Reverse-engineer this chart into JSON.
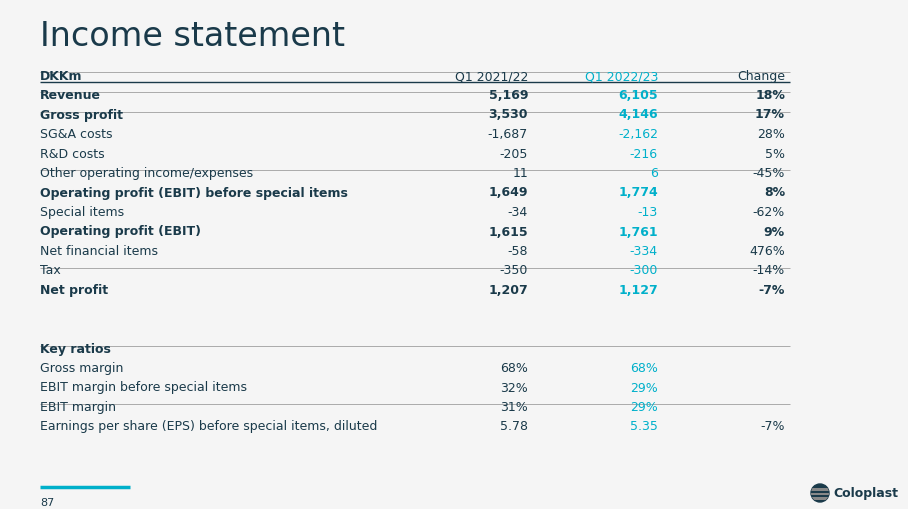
{
  "title": "Income statement",
  "background_color": "#f5f5f5",
  "title_color": "#1a3a4a",
  "cyan_color": "#00b0ca",
  "dark_color": "#1a3a4a",
  "header": [
    "DKKm",
    "Q1 2021/22",
    "Q1 2022/23",
    "Change"
  ],
  "rows": [
    {
      "label": "Revenue",
      "v1": "5,169",
      "v2": "6,105",
      "chg": "18%",
      "bold": true,
      "sep_above": true,
      "sep_below": true
    },
    {
      "label": "Gross profit",
      "v1": "3,530",
      "v2": "4,146",
      "chg": "17%",
      "bold": true,
      "sep_above": false,
      "sep_below": true
    },
    {
      "label": "SG&A costs",
      "v1": "-1,687",
      "v2": "-2,162",
      "chg": "28%",
      "bold": false,
      "sep_above": false,
      "sep_below": false
    },
    {
      "label": "R&D costs",
      "v1": "-205",
      "v2": "-216",
      "chg": "5%",
      "bold": false,
      "sep_above": false,
      "sep_below": false
    },
    {
      "label": "Other operating income/expenses",
      "v1": "11",
      "v2": "6",
      "chg": "-45%",
      "bold": false,
      "sep_above": false,
      "sep_below": true
    },
    {
      "label": "Operating profit (EBIT) before special items",
      "v1": "1,649",
      "v2": "1,774",
      "chg": "8%",
      "bold": true,
      "sep_above": false,
      "sep_below": false
    },
    {
      "label": "Special items",
      "v1": "-34",
      "v2": "-13",
      "chg": "-62%",
      "bold": false,
      "sep_above": false,
      "sep_below": false
    },
    {
      "label": "Operating profit (EBIT)",
      "v1": "1,615",
      "v2": "1,761",
      "chg": "9%",
      "bold": true,
      "sep_above": false,
      "sep_below": false
    },
    {
      "label": "Net financial items",
      "v1": "-58",
      "v2": "-334",
      "chg": "476%",
      "bold": false,
      "sep_above": false,
      "sep_below": false
    },
    {
      "label": "Tax",
      "v1": "-350",
      "v2": "-300",
      "chg": "-14%",
      "bold": false,
      "sep_above": false,
      "sep_below": true
    },
    {
      "label": "Net profit",
      "v1": "1,207",
      "v2": "1,127",
      "chg": "-7%",
      "bold": true,
      "sep_above": false,
      "sep_below": false
    },
    {
      "label": "",
      "v1": "",
      "v2": "",
      "chg": "",
      "bold": false,
      "sep_above": false,
      "sep_below": false
    },
    {
      "label": "",
      "v1": "",
      "v2": "",
      "chg": "",
      "bold": false,
      "sep_above": false,
      "sep_below": false
    },
    {
      "label": "Key ratios",
      "v1": "",
      "v2": "",
      "chg": "",
      "bold": true,
      "sep_above": false,
      "sep_below": true
    },
    {
      "label": "Gross margin",
      "v1": "68%",
      "v2": "68%",
      "chg": "",
      "bold": false,
      "sep_above": false,
      "sep_below": false
    },
    {
      "label": "EBIT margin before special items",
      "v1": "32%",
      "v2": "29%",
      "chg": "",
      "bold": false,
      "sep_above": false,
      "sep_below": false
    },
    {
      "label": "EBIT margin",
      "v1": "31%",
      "v2": "29%",
      "chg": "",
      "bold": false,
      "sep_above": false,
      "sep_below": true
    },
    {
      "label": "Earnings per share (EPS) before special items, diluted",
      "v1": "5.78",
      "v2": "5.35",
      "chg": "-7%",
      "bold": false,
      "sep_above": false,
      "sep_below": false
    }
  ],
  "footer_text": "87",
  "footer_line_color": "#00b0ca",
  "coloplast_text": "Coloplast"
}
